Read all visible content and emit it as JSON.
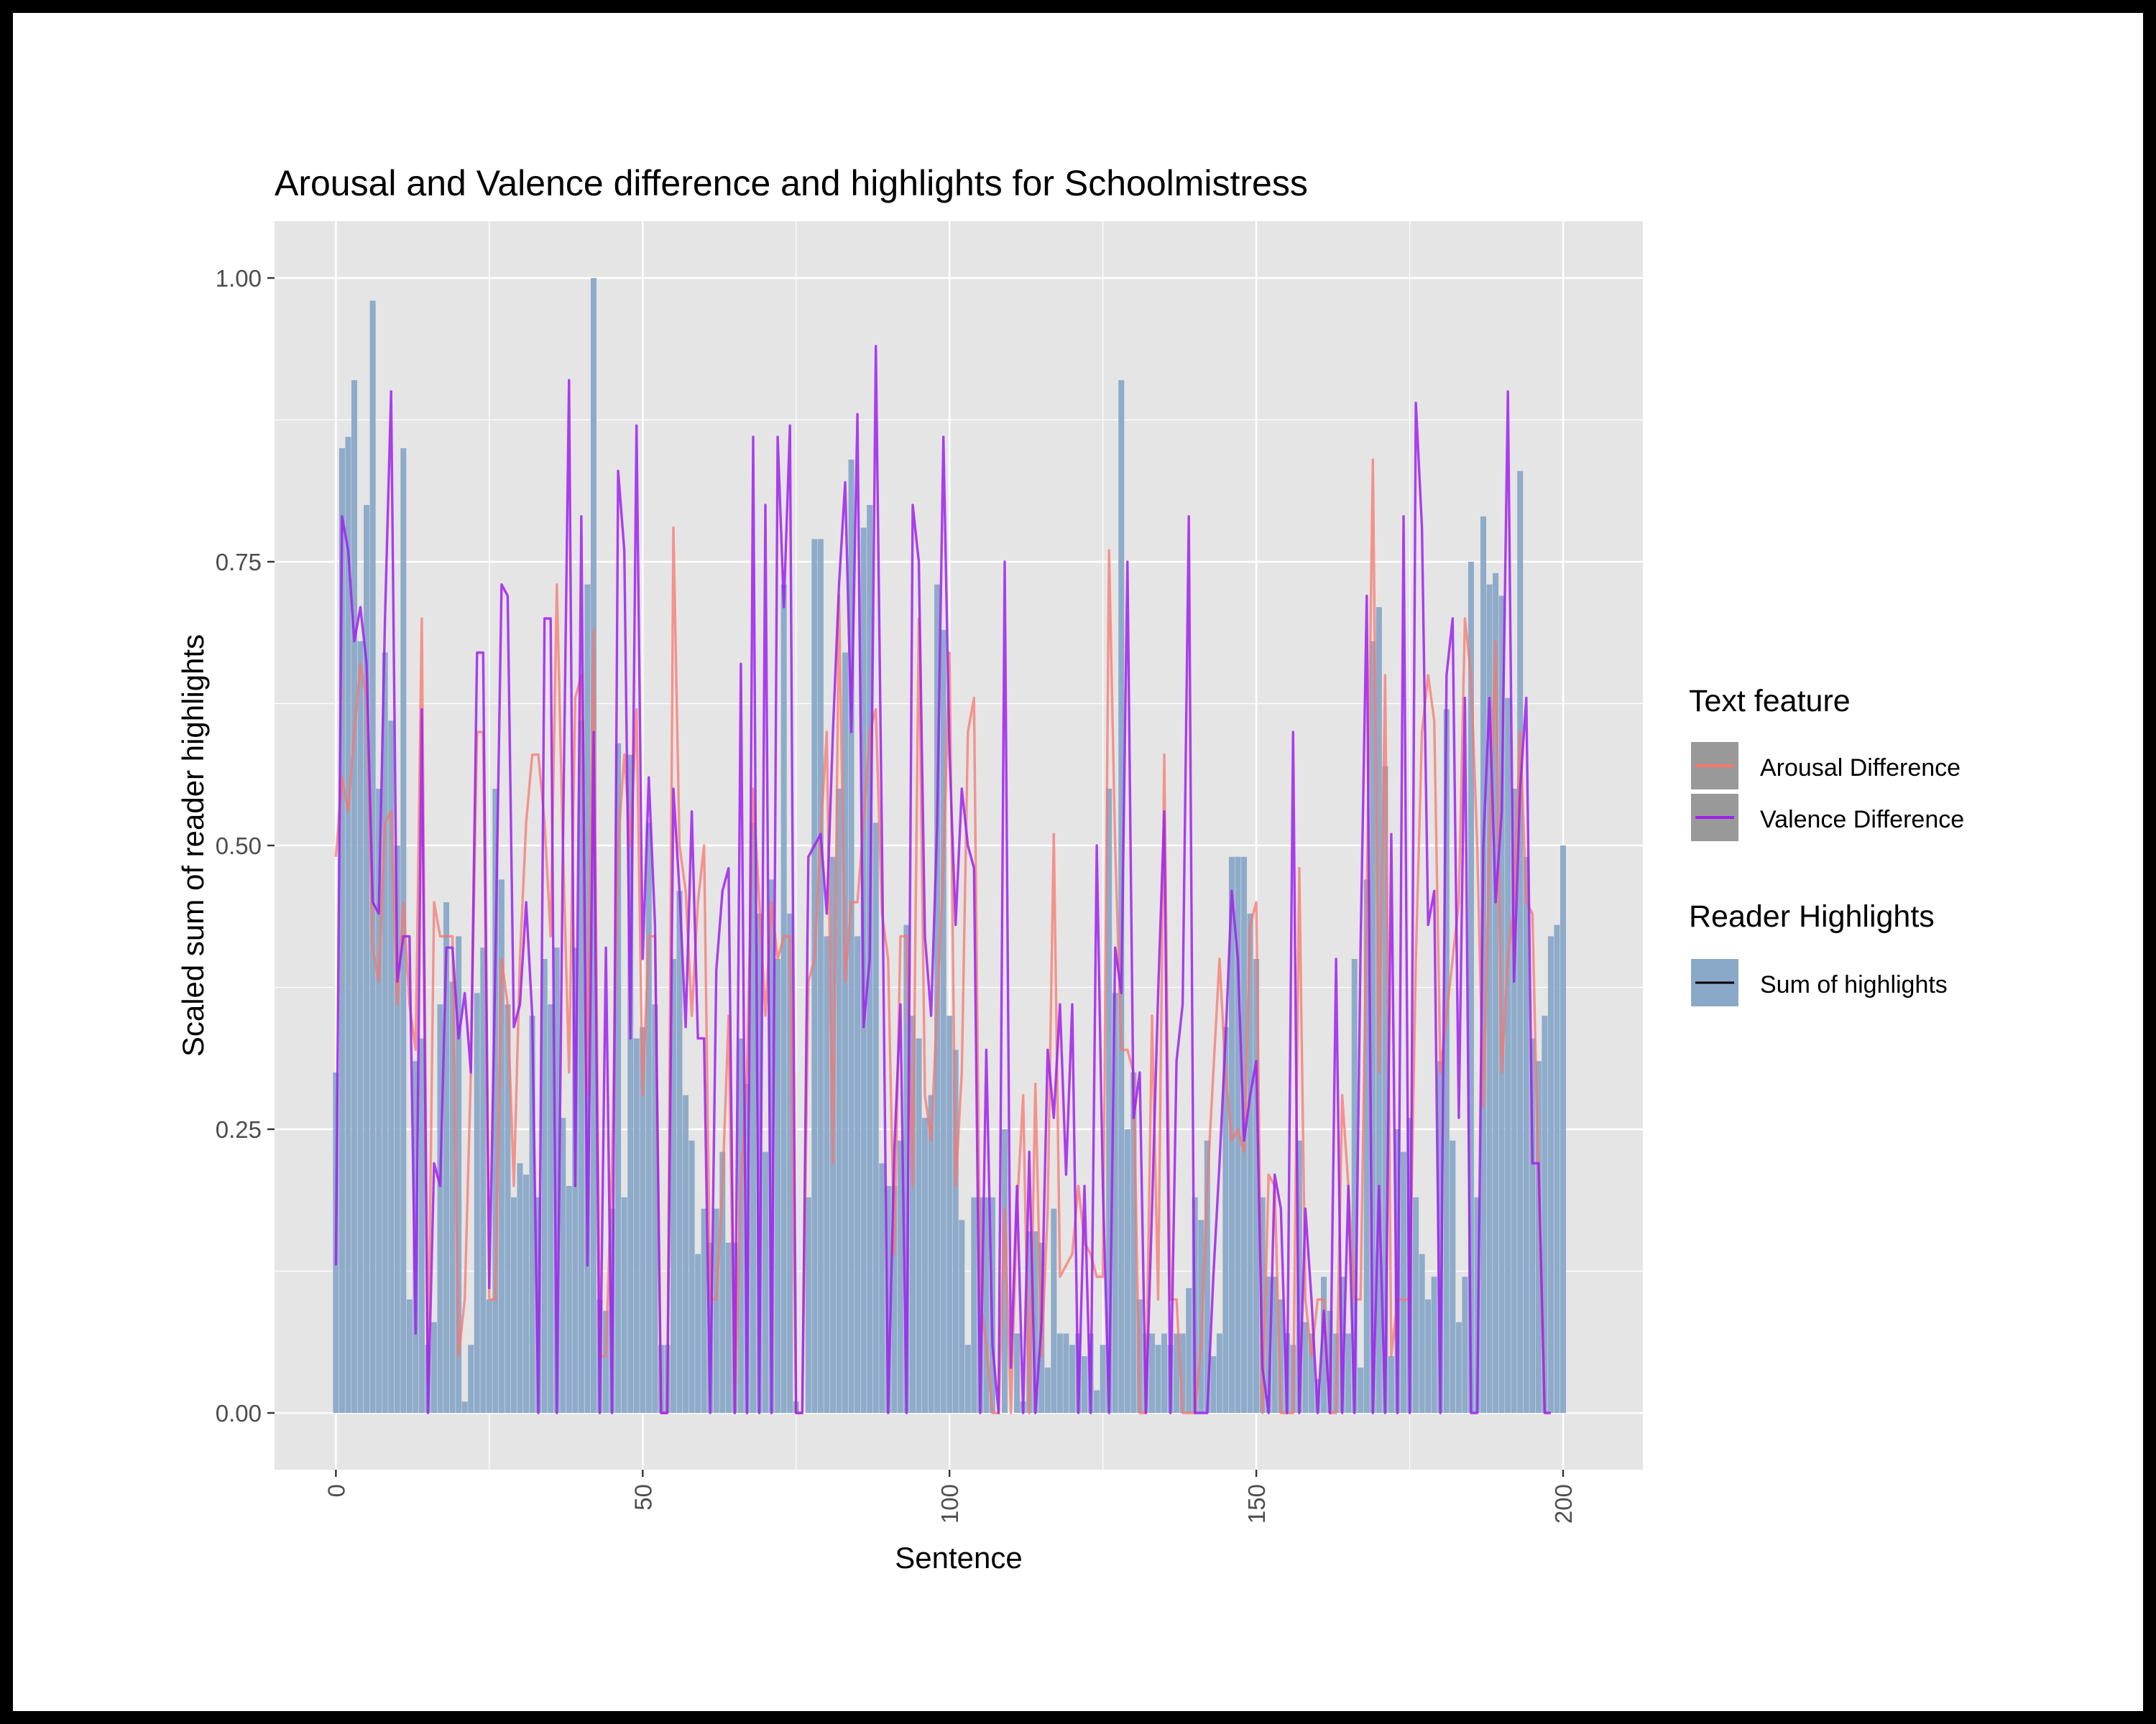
{
  "chart_data": {
    "type": "bar",
    "title": "Arousal and Valence difference and highlights for Schoolmistress",
    "xlabel": "Sentence",
    "ylabel": "Scaled sum of reader highlights",
    "xlim": [
      -10,
      213
    ],
    "ylim": [
      -0.05,
      1.05
    ],
    "x_ticks": [
      {
        "value": 0,
        "label": "0"
      },
      {
        "value": 50,
        "label": "50"
      },
      {
        "value": 100,
        "label": "100"
      },
      {
        "value": 150,
        "label": "150"
      },
      {
        "value": 200,
        "label": "200"
      }
    ],
    "y_ticks": [
      {
        "value": 0,
        "label": "0.00"
      },
      {
        "value": 0.25,
        "label": "0.25"
      },
      {
        "value": 0.5,
        "label": "0.50"
      },
      {
        "value": 0.75,
        "label": "0.75"
      },
      {
        "value": 1.0,
        "label": "1.00"
      }
    ],
    "grid": true,
    "legend_position": "right",
    "legends": [
      {
        "title": "Text feature",
        "entries": [
          {
            "label": "Arousal Difference",
            "color": "#F8766D",
            "key": "line-on-grey"
          },
          {
            "label": "Valence Difference",
            "color": "#A020F0",
            "key": "line-on-grey"
          }
        ]
      },
      {
        "title": "Reader Highlights",
        "entries": [
          {
            "label": "Sum of highlights",
            "color": "#8AA8C8",
            "key": "bar"
          }
        ]
      }
    ],
    "colors": {
      "panel": "#E5E5E5",
      "grid": "#FFFFFF",
      "bar": "#8AA8C8",
      "arousal": "#F8766D",
      "valence": "#A020F0",
      "key_bg": "#999999"
    },
    "highlights": [
      0.3,
      0.85,
      0.86,
      0.91,
      0.68,
      0.8,
      0.98,
      0.55,
      0.67,
      0.61,
      0.5,
      0.85,
      0.1,
      0.31,
      0.33,
      0.06,
      0.08,
      0.36,
      0.45,
      0.38,
      0.42,
      0.01,
      0.06,
      0.37,
      0.41,
      0.1,
      0.55,
      0.47,
      0.36,
      0.19,
      0.22,
      0.21,
      0.35,
      0.19,
      0.4,
      0.36,
      0.41,
      0.26,
      0.2,
      0.41,
      0.61,
      0.73,
      1.0,
      0.1,
      0.09,
      0.18,
      0.59,
      0.19,
      0.58,
      0.33,
      0.34,
      0.52,
      0.36,
      0.06,
      0.06,
      0.4,
      0.46,
      0.28,
      0.24,
      0.14,
      0.18,
      0.15,
      0.18,
      0.23,
      0.15,
      0.15,
      0.33,
      0.29,
      0.52,
      0.44,
      0.23,
      0.47,
      0.4,
      0.73,
      0.44,
      0.01,
      0.0,
      0.19,
      0.77,
      0.77,
      0.42,
      0.49,
      0.55,
      0.67,
      0.84,
      0.42,
      0.78,
      0.8,
      0.52,
      0.22,
      0.2,
      0.2,
      0.24,
      0.43,
      0.35,
      0.33,
      0.26,
      0.28,
      0.73,
      0.69,
      0.35,
      0.32,
      0.17,
      0.06,
      0.19,
      0.19,
      0.19,
      0.19,
      0.0,
      0.25,
      0.0,
      0.07,
      0.01,
      0.16,
      0.16,
      0.15,
      0.04,
      0.18,
      0.07,
      0.07,
      0.06,
      0.07,
      0.05,
      0.07,
      0.02,
      0.06,
      0.55,
      0.37,
      0.91,
      0.25,
      0.3,
      0.1,
      0.07,
      0.07,
      0.06,
      0.07,
      0.06,
      0.07,
      0.07,
      0.11,
      0.19,
      0.17,
      0.24,
      0.05,
      0.07,
      0.34,
      0.49,
      0.49,
      0.49,
      0.44,
      0.4,
      0.19,
      0.12,
      0.12,
      0.1,
      0.07,
      0.06,
      0.24,
      0.08,
      0.07,
      0.03,
      0.12,
      0.09,
      0.07,
      0.12,
      0.07,
      0.4,
      0.04,
      0.47,
      0.68,
      0.71,
      0.57,
      0.05,
      0.25,
      0.23,
      0.26,
      0.19,
      0.14,
      0.1,
      0.12,
      0.31,
      0.62,
      0.24,
      0.08,
      0.12,
      0.75,
      0.19,
      0.79,
      0.73,
      0.74,
      0.72,
      0.63,
      0.55,
      0.83,
      0.49,
      0.33,
      0.31,
      0.35,
      0.42,
      0.43,
      0.5
    ],
    "arousal": [
      0.49,
      0.56,
      0.53,
      0.6,
      0.66,
      0.63,
      0.41,
      0.38,
      0.52,
      0.53,
      0.36,
      0.45,
      0.36,
      0.32,
      0.7,
      0.03,
      0.45,
      0.42,
      0.42,
      0.42,
      0.05,
      0.1,
      0.3,
      0.6,
      0.6,
      0.1,
      0.1,
      0.4,
      0.36,
      0.2,
      0.4,
      0.52,
      0.58,
      0.58,
      0.52,
      0.42,
      0.73,
      0.5,
      0.3,
      0.63,
      0.65,
      0.28,
      0.69,
      0.05,
      0.05,
      0.22,
      0.5,
      0.58,
      0.5,
      0.62,
      0.28,
      0.42,
      0.42,
      0.0,
      0.0,
      0.78,
      0.5,
      0.46,
      0.35,
      0.45,
      0.5,
      0.1,
      0.1,
      0.2,
      0.35,
      0.0,
      0.2,
      0.3,
      0.55,
      0.45,
      0.35,
      0.45,
      0.4,
      0.42,
      0.42,
      0.0,
      0.0,
      0.38,
      0.4,
      0.51,
      0.6,
      0.22,
      0.72,
      0.38,
      0.45,
      0.45,
      0.52,
      0.6,
      0.62,
      0.44,
      0.4,
      0.14,
      0.42,
      0.42,
      0.2,
      0.7,
      0.28,
      0.24,
      0.36,
      0.48,
      0.67,
      0.2,
      0.3,
      0.6,
      0.63,
      0.1,
      0.06,
      0.0,
      0.0,
      0.18,
      0.0,
      0.18,
      0.28,
      0.0,
      0.29,
      0.05,
      0.18,
      0.51,
      0.12,
      0.13,
      0.14,
      0.2,
      0.15,
      0.14,
      0.12,
      0.12,
      0.76,
      0.5,
      0.32,
      0.32,
      0.3,
      0.0,
      0.0,
      0.35,
      0.1,
      0.58,
      0.1,
      0.1,
      0.0,
      0.0,
      0.0,
      0.06,
      0.2,
      0.3,
      0.4,
      0.3,
      0.24,
      0.25,
      0.23,
      0.43,
      0.45,
      0.0,
      0.21,
      0.2,
      0.0,
      0.0,
      0.0,
      0.48,
      0.1,
      0.05,
      0.1,
      0.1,
      0.0,
      0.0,
      0.28,
      0.2,
      0.1,
      0.1,
      0.45,
      0.84,
      0.3,
      0.65,
      0.05,
      0.1,
      0.1,
      0.1,
      0.4,
      0.6,
      0.65,
      0.61,
      0.3,
      0.35,
      0.4,
      0.45,
      0.7,
      0.65,
      0.5,
      0.27,
      0.5,
      0.68,
      0.3,
      0.4,
      0.45,
      0.6,
      0.45,
      0.44,
      0.2,
      0.0
    ],
    "valence": [
      0.13,
      0.79,
      0.76,
      0.68,
      0.71,
      0.66,
      0.45,
      0.44,
      0.7,
      0.9,
      0.38,
      0.42,
      0.42,
      0.07,
      0.62,
      0.0,
      0.22,
      0.2,
      0.41,
      0.41,
      0.33,
      0.37,
      0.3,
      0.67,
      0.67,
      0.11,
      0.4,
      0.73,
      0.72,
      0.34,
      0.36,
      0.45,
      0.35,
      0.0,
      0.7,
      0.7,
      0.0,
      0.5,
      0.91,
      0.2,
      0.79,
      0.13,
      0.6,
      0.0,
      0.41,
      0.0,
      0.83,
      0.76,
      0.33,
      0.87,
      0.4,
      0.56,
      0.43,
      0.0,
      0.0,
      0.55,
      0.46,
      0.34,
      0.53,
      0.33,
      0.33,
      0.0,
      0.39,
      0.46,
      0.48,
      0.0,
      0.66,
      0.0,
      0.86,
      0.0,
      0.8,
      0.0,
      0.86,
      0.71,
      0.87,
      0.0,
      0.0,
      0.49,
      0.5,
      0.51,
      0.44,
      0.6,
      0.73,
      0.82,
      0.6,
      0.88,
      0.34,
      0.4,
      0.94,
      0.5,
      0.0,
      0.23,
      0.36,
      0.0,
      0.8,
      0.75,
      0.42,
      0.35,
      0.52,
      0.86,
      0.58,
      0.43,
      0.55,
      0.5,
      0.48,
      0.0,
      0.32,
      0.06,
      0.0,
      0.75,
      0.04,
      0.2,
      0.0,
      0.23,
      0.0,
      0.08,
      0.32,
      0.26,
      0.36,
      0.21,
      0.36,
      0.0,
      0.2,
      0.0,
      0.5,
      0.2,
      0.0,
      0.41,
      0.37,
      0.75,
      0.26,
      0.3,
      0.0,
      0.18,
      0.37,
      0.53,
      0.0,
      0.31,
      0.36,
      0.79,
      0.0,
      0.0,
      0.0,
      0.12,
      0.22,
      0.33,
      0.46,
      0.4,
      0.24,
      0.28,
      0.31,
      0.04,
      0.0,
      0.21,
      0.18,
      0.0,
      0.6,
      0.0,
      0.18,
      0.1,
      0.0,
      0.09,
      0.0,
      0.4,
      0.0,
      0.2,
      0.0,
      0.41,
      0.72,
      0.0,
      0.2,
      0.0,
      0.51,
      0.0,
      0.79,
      0.0,
      0.89,
      0.78,
      0.43,
      0.46,
      0.0,
      0.65,
      0.7,
      0.26,
      0.63,
      0.0,
      0.0,
      0.5,
      0.63,
      0.45,
      0.53,
      0.9,
      0.38,
      0.55,
      0.63,
      0.22,
      0.22,
      0.0,
      0.0
    ]
  }
}
